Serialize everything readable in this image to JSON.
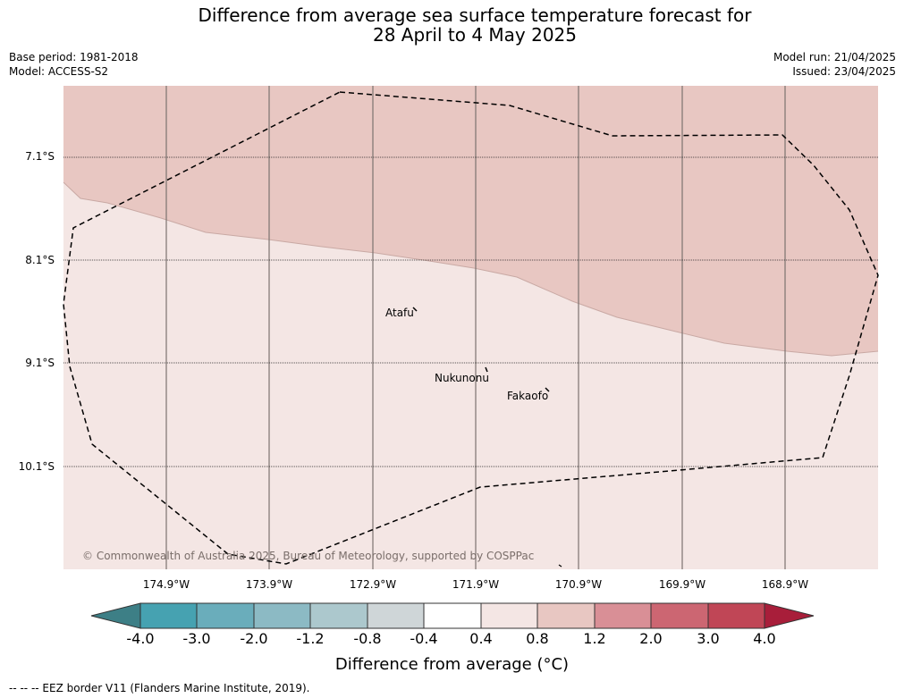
{
  "title": {
    "line1": "Difference from average sea surface temperature forecast for",
    "line2": "28 April to 4 May 2025"
  },
  "meta": {
    "base_period": "Base period: 1981-2018",
    "model": "Model: ACCESS-S2",
    "model_run": "Model run: 21/04/2025",
    "issued": "Issued: 23/04/2025"
  },
  "map": {
    "lat_labels": [
      "7.1°S",
      "8.1°S",
      "9.1°S",
      "10.1°S"
    ],
    "lon_labels": [
      "174.9°W",
      "173.9°W",
      "172.9°W",
      "171.9°W",
      "170.9°W",
      "169.9°W",
      "168.9°W"
    ],
    "places": [
      "Atafu",
      "Nukunonu",
      "Fakaofo"
    ],
    "copyright": "© Commonwealth of Australia 2025, Bureau of Meteorology, supported by COSPPac",
    "anomaly_classes": [
      {
        "range": "0.8 to 1.2",
        "color": "#e8c7c2"
      },
      {
        "range": "0.4 to 0.8",
        "color": "#f4e6e4"
      }
    ]
  },
  "colorbar": {
    "label": "Difference from average (°C)",
    "ticks": [
      "-4.0",
      "-3.0",
      "-2.0",
      "-1.2",
      "-0.8",
      "-0.4",
      "0.4",
      "0.8",
      "1.2",
      "2.0",
      "3.0",
      "4.0"
    ],
    "under_color": "#3d7f86",
    "over_color": "#a81e3a",
    "colors": [
      "#46a2b1",
      "#6aadbb",
      "#8cbac4",
      "#acc8cd",
      "#cfd6d8",
      "#ffffff",
      "#f4e6e4",
      "#e8c7c2",
      "#d98f96",
      "#cc6672",
      "#c04656"
    ]
  },
  "legend": {
    "text": "-- -- -- EEZ border V11 (Flanders Marine Institute, 2019)."
  }
}
